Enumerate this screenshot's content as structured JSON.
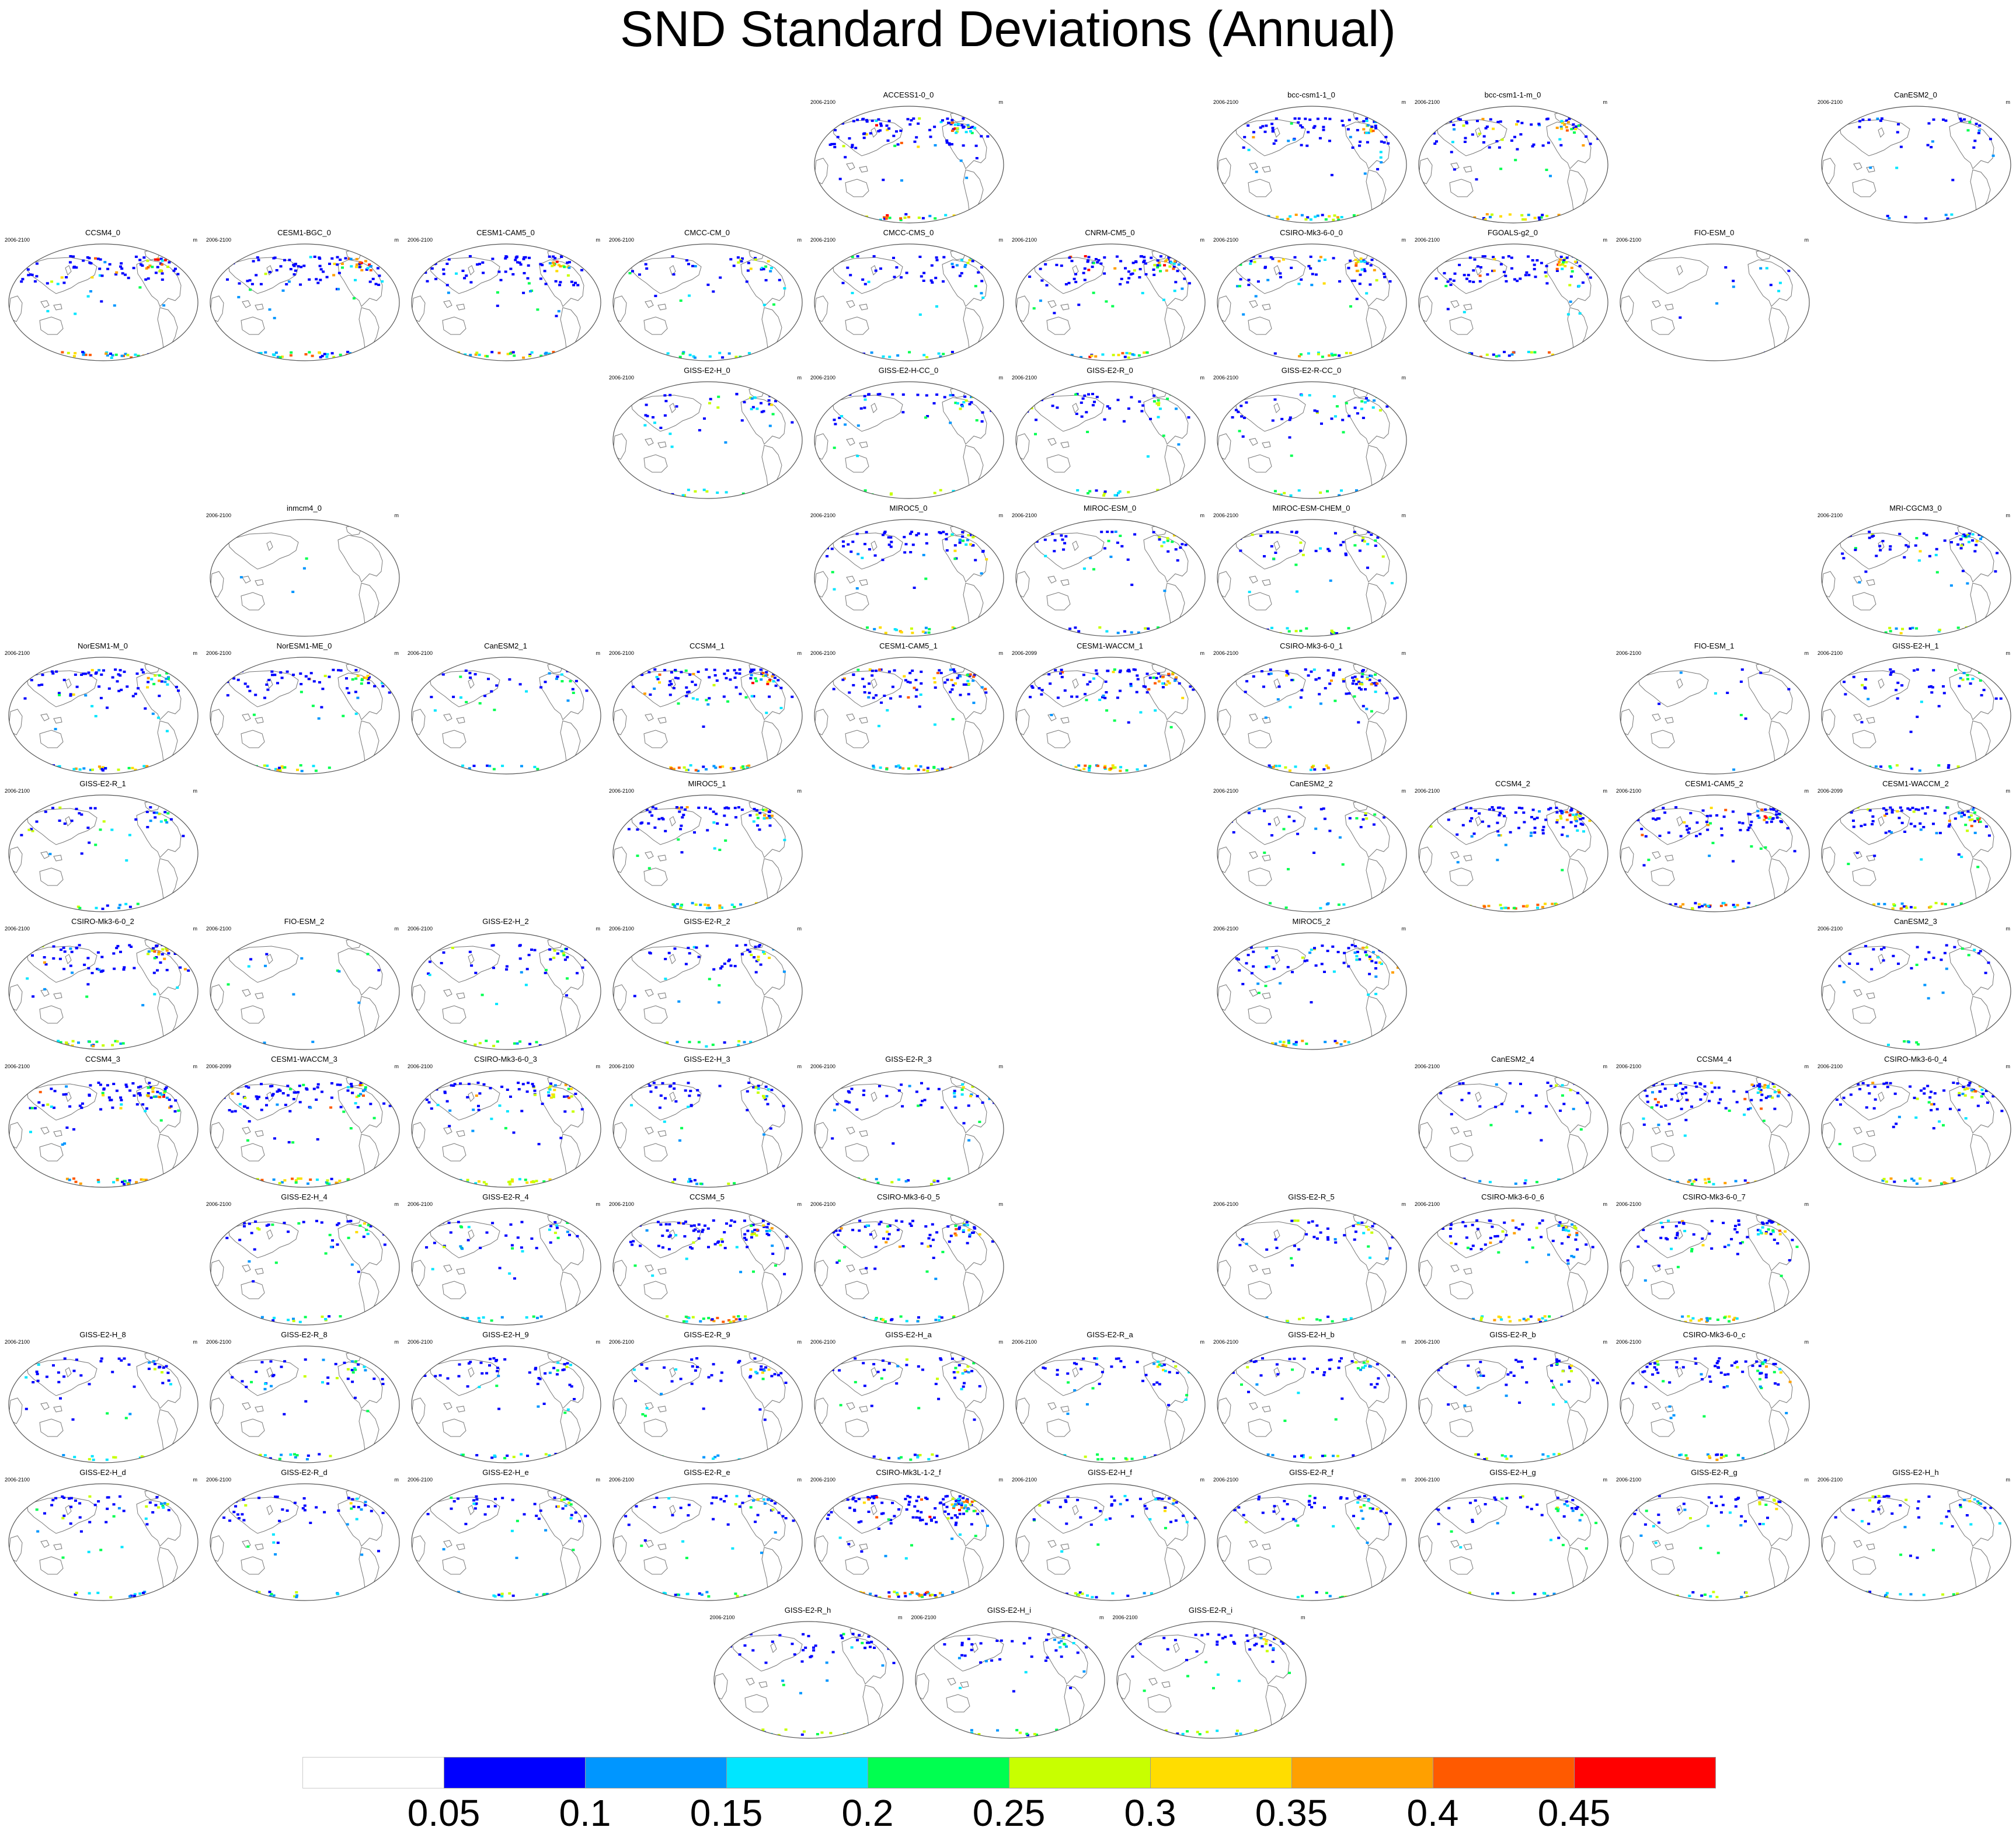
{
  "title": "SND Standard Deviations (Annual)",
  "units": "m",
  "colors": {
    "coast": "#777777",
    "frame": "#555555",
    "bins": [
      "#ffffff",
      "#0000ff",
      "#0096ff",
      "#00e6ff",
      "#00ff50",
      "#c8ff00",
      "#ffdd00",
      "#ffa000",
      "#ff5a00",
      "#ff0000"
    ]
  },
  "colorbar": {
    "labels": [
      "0.05",
      "0.1",
      "0.15",
      "0.2",
      "0.25",
      "0.3",
      "0.35",
      "0.4",
      "0.45"
    ]
  },
  "panels": [
    {
      "name": "ACCESS1-0_0",
      "period": "2006-2100",
      "row": 0,
      "col": 4,
      "intensity": 0.7
    },
    {
      "name": "bcc-csm1-1_0",
      "period": "2006-2100",
      "row": 0,
      "col": 6,
      "intensity": 0.5
    },
    {
      "name": "bcc-csm1-1-m_0",
      "period": "2006-2100",
      "row": 0,
      "col": 7,
      "intensity": 0.5
    },
    {
      "name": "CanESM2_0",
      "period": "2006-2100",
      "row": 0,
      "col": 9,
      "intensity": 0.2
    },
    {
      "name": "CCSM4_0",
      "period": "2006-2100",
      "row": 1,
      "col": 0,
      "intensity": 0.6
    },
    {
      "name": "CESM1-BGC_0",
      "period": "2006-2100",
      "row": 1,
      "col": 1,
      "intensity": 0.6
    },
    {
      "name": "CESM1-CAM5_0",
      "period": "2006-2100",
      "row": 1,
      "col": 2,
      "intensity": 0.6
    },
    {
      "name": "CMCC-CM_0",
      "period": "2006-2100",
      "row": 1,
      "col": 3,
      "intensity": 0.3
    },
    {
      "name": "CMCC-CMS_0",
      "period": "2006-2100",
      "row": 1,
      "col": 4,
      "intensity": 0.3
    },
    {
      "name": "CNRM-CM5_0",
      "period": "2006-2100",
      "row": 1,
      "col": 5,
      "intensity": 0.7
    },
    {
      "name": "CSIRO-Mk3-6-0_0",
      "period": "2006-2100",
      "row": 1,
      "col": 6,
      "intensity": 0.5
    },
    {
      "name": "FGOALS-g2_0",
      "period": "2006-2100",
      "row": 1,
      "col": 7,
      "intensity": 0.6
    },
    {
      "name": "FIO-ESM_0",
      "period": "2006-2100",
      "row": 1,
      "col": 8,
      "intensity": 0.05
    },
    {
      "name": "GISS-E2-H_0",
      "period": "2006-2100",
      "row": 2,
      "col": 3,
      "intensity": 0.3
    },
    {
      "name": "GISS-E2-H-CC_0",
      "period": "2006-2100",
      "row": 2,
      "col": 4,
      "intensity": 0.3
    },
    {
      "name": "GISS-E2-R_0",
      "period": "2006-2100",
      "row": 2,
      "col": 5,
      "intensity": 0.3
    },
    {
      "name": "GISS-E2-R-CC_0",
      "period": "2006-2100",
      "row": 2,
      "col": 6,
      "intensity": 0.3
    },
    {
      "name": "inmcm4_0",
      "period": "2006-2100",
      "row": 3,
      "col": 1,
      "intensity": 0.0
    },
    {
      "name": "MIROC5_0",
      "period": "2006-2100",
      "row": 3,
      "col": 4,
      "intensity": 0.5
    },
    {
      "name": "MIROC-ESM_0",
      "period": "2006-2100",
      "row": 3,
      "col": 5,
      "intensity": 0.3
    },
    {
      "name": "MIROC-ESM-CHEM_0",
      "period": "2006-2100",
      "row": 3,
      "col": 6,
      "intensity": 0.3
    },
    {
      "name": "MRI-CGCM3_0",
      "period": "2006-2100",
      "row": 3,
      "col": 9,
      "intensity": 0.4
    },
    {
      "name": "NorESM1-M_0",
      "period": "2006-2100",
      "row": 4,
      "col": 0,
      "intensity": 0.5
    },
    {
      "name": "NorESM1-ME_0",
      "period": "2006-2100",
      "row": 4,
      "col": 1,
      "intensity": 0.5
    },
    {
      "name": "CanESM2_1",
      "period": "2006-2100",
      "row": 4,
      "col": 2,
      "intensity": 0.2
    },
    {
      "name": "CCSM4_1",
      "period": "2006-2100",
      "row": 4,
      "col": 3,
      "intensity": 0.6
    },
    {
      "name": "CESM1-CAM5_1",
      "period": "2006-2100",
      "row": 4,
      "col": 4,
      "intensity": 0.6
    },
    {
      "name": "CESM1-WACCM_1",
      "period": "2006-2099",
      "row": 4,
      "col": 5,
      "intensity": 0.6
    },
    {
      "name": "CSIRO-Mk3-6-0_1",
      "period": "2006-2100",
      "row": 4,
      "col": 6,
      "intensity": 0.5
    },
    {
      "name": "FIO-ESM_1",
      "period": "2006-2100",
      "row": 4,
      "col": 8,
      "intensity": 0.05
    },
    {
      "name": "GISS-E2-H_1",
      "period": "2006-2100",
      "row": 4,
      "col": 9,
      "intensity": 0.3
    },
    {
      "name": "GISS-E2-R_1",
      "period": "2006-2100",
      "row": 5,
      "col": 0,
      "intensity": 0.3
    },
    {
      "name": "MIROC5_1",
      "period": "2006-2100",
      "row": 5,
      "col": 3,
      "intensity": 0.5
    },
    {
      "name": "CanESM2_2",
      "period": "2006-2100",
      "row": 5,
      "col": 6,
      "intensity": 0.2
    },
    {
      "name": "CCSM4_2",
      "period": "2006-2100",
      "row": 5,
      "col": 7,
      "intensity": 0.6
    },
    {
      "name": "CESM1-CAM5_2",
      "period": "2006-2100",
      "row": 5,
      "col": 8,
      "intensity": 0.6
    },
    {
      "name": "CESM1-WACCM_2",
      "period": "2006-2099",
      "row": 5,
      "col": 9,
      "intensity": 0.6
    },
    {
      "name": "CSIRO-Mk3-6-0_2",
      "period": "2006-2100",
      "row": 6,
      "col": 0,
      "intensity": 0.5
    },
    {
      "name": "FIO-ESM_2",
      "period": "2006-2100",
      "row": 6,
      "col": 1,
      "intensity": 0.05
    },
    {
      "name": "GISS-E2-H_2",
      "period": "2006-2100",
      "row": 6,
      "col": 2,
      "intensity": 0.3
    },
    {
      "name": "GISS-E2-R_2",
      "period": "2006-2100",
      "row": 6,
      "col": 3,
      "intensity": 0.3
    },
    {
      "name": "MIROC5_2",
      "period": "2006-2100",
      "row": 6,
      "col": 6,
      "intensity": 0.5
    },
    {
      "name": "CanESM2_3",
      "period": "2006-2100",
      "row": 6,
      "col": 9,
      "intensity": 0.2
    },
    {
      "name": "CCSM4_3",
      "period": "2006-2100",
      "row": 7,
      "col": 0,
      "intensity": 0.6
    },
    {
      "name": "CESM1-WACCM_3",
      "period": "2006-2099",
      "row": 7,
      "col": 1,
      "intensity": 0.6
    },
    {
      "name": "CSIRO-Mk3-6-0_3",
      "period": "2006-2100",
      "row": 7,
      "col": 2,
      "intensity": 0.5
    },
    {
      "name": "GISS-E2-H_3",
      "period": "2006-2100",
      "row": 7,
      "col": 3,
      "intensity": 0.3
    },
    {
      "name": "GISS-E2-R_3",
      "period": "2006-2100",
      "row": 7,
      "col": 4,
      "intensity": 0.3
    },
    {
      "name": "CanESM2_4",
      "period": "2006-2100",
      "row": 7,
      "col": 7,
      "intensity": 0.2
    },
    {
      "name": "CCSM4_4",
      "period": "2006-2100",
      "row": 7,
      "col": 8,
      "intensity": 0.6
    },
    {
      "name": "CSIRO-Mk3-6-0_4",
      "period": "2006-2100",
      "row": 7,
      "col": 9,
      "intensity": 0.5
    },
    {
      "name": "GISS-E2-H_4",
      "period": "2006-2100",
      "row": 8,
      "col": 1,
      "intensity": 0.3
    },
    {
      "name": "GISS-E2-R_4",
      "period": "2006-2100",
      "row": 8,
      "col": 2,
      "intensity": 0.3
    },
    {
      "name": "CCSM4_5",
      "period": "2006-2100",
      "row": 8,
      "col": 3,
      "intensity": 0.6
    },
    {
      "name": "CSIRO-Mk3-6-0_5",
      "period": "2006-2100",
      "row": 8,
      "col": 4,
      "intensity": 0.5
    },
    {
      "name": "GISS-E2-R_5",
      "period": "2006-2100",
      "row": 8,
      "col": 6,
      "intensity": 0.3
    },
    {
      "name": "CSIRO-Mk3-6-0_6",
      "period": "2006-2100",
      "row": 8,
      "col": 7,
      "intensity": 0.5
    },
    {
      "name": "CSIRO-Mk3-6-0_7",
      "period": "2006-2100",
      "row": 8,
      "col": 8,
      "intensity": 0.5
    },
    {
      "name": "GISS-E2-H_8",
      "period": "2006-2100",
      "row": 9,
      "col": 0,
      "intensity": 0.3
    },
    {
      "name": "GISS-E2-R_8",
      "period": "2006-2100",
      "row": 9,
      "col": 1,
      "intensity": 0.3
    },
    {
      "name": "GISS-E2-H_9",
      "period": "2006-2100",
      "row": 9,
      "col": 2,
      "intensity": 0.3
    },
    {
      "name": "GISS-E2-R_9",
      "period": "2006-2100",
      "row": 9,
      "col": 3,
      "intensity": 0.3
    },
    {
      "name": "GISS-E2-H_a",
      "period": "2006-2100",
      "row": 9,
      "col": 4,
      "intensity": 0.3
    },
    {
      "name": "GISS-E2-R_a",
      "period": "2006-2100",
      "row": 9,
      "col": 5,
      "intensity": 0.3
    },
    {
      "name": "GISS-E2-H_b",
      "period": "2006-2100",
      "row": 9,
      "col": 6,
      "intensity": 0.3
    },
    {
      "name": "GISS-E2-R_b",
      "period": "2006-2100",
      "row": 9,
      "col": 7,
      "intensity": 0.3
    },
    {
      "name": "CSIRO-Mk3-6-0_c",
      "period": "2006-2100",
      "row": 9,
      "col": 8,
      "intensity": 0.5
    },
    {
      "name": "GISS-E2-H_d",
      "period": "2006-2100",
      "row": 10,
      "col": 0,
      "intensity": 0.3
    },
    {
      "name": "GISS-E2-R_d",
      "period": "2006-2100",
      "row": 10,
      "col": 1,
      "intensity": 0.3
    },
    {
      "name": "GISS-E2-H_e",
      "period": "2006-2100",
      "row": 10,
      "col": 2,
      "intensity": 0.3
    },
    {
      "name": "GISS-E2-R_e",
      "period": "2006-2100",
      "row": 10,
      "col": 3,
      "intensity": 0.3
    },
    {
      "name": "CSIRO-Mk3L-1-2_f",
      "period": "2006-2100",
      "row": 10,
      "col": 4,
      "intensity": 0.9
    },
    {
      "name": "GISS-E2-H_f",
      "period": "2006-2100",
      "row": 10,
      "col": 5,
      "intensity": 0.3
    },
    {
      "name": "GISS-E2-R_f",
      "period": "2006-2100",
      "row": 10,
      "col": 6,
      "intensity": 0.3
    },
    {
      "name": "GISS-E2-H_g",
      "period": "2006-2100",
      "row": 10,
      "col": 7,
      "intensity": 0.3
    },
    {
      "name": "GISS-E2-R_g",
      "period": "2006-2100",
      "row": 10,
      "col": 8,
      "intensity": 0.3
    },
    {
      "name": "GISS-E2-H_h",
      "period": "2006-2100",
      "row": 10,
      "col": 9,
      "intensity": 0.3
    },
    {
      "name": "GISS-E2-R_h",
      "period": "2006-2100",
      "row": 11,
      "col": 3.5,
      "intensity": 0.3
    },
    {
      "name": "GISS-E2-H_i",
      "period": "2006-2100",
      "row": 11,
      "col": 4.5,
      "intensity": 0.3
    },
    {
      "name": "GISS-E2-R_i",
      "period": "2006-2100",
      "row": 11,
      "col": 5.5,
      "intensity": 0.3
    }
  ]
}
